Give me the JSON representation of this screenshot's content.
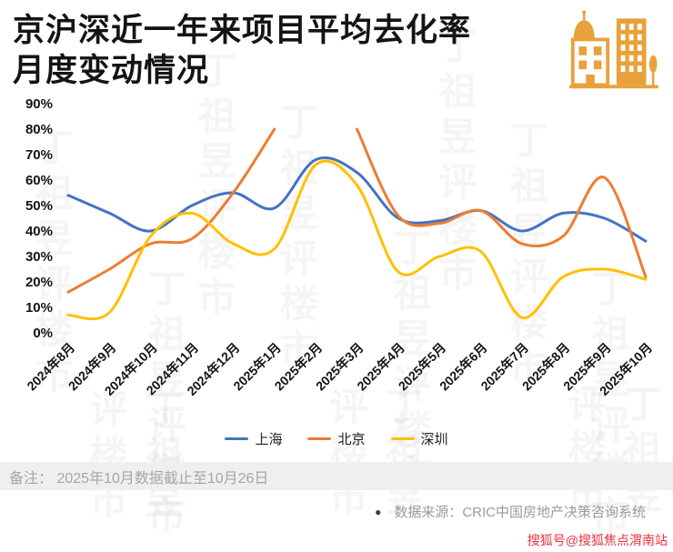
{
  "title": {
    "line1": "京沪深近一年来项目平均去化率",
    "line2": "月度变动情况"
  },
  "icon": {
    "name": "buildings-icon",
    "color": "#E8A23C"
  },
  "chart_data": {
    "type": "line",
    "title": "京沪深近一年来项目平均去化率月度变动情况",
    "categories": [
      "2024年8月",
      "2024年9月",
      "2024年10月",
      "2024年11月",
      "2024年12月",
      "2025年1月",
      "2025年2月",
      "2025年3月",
      "2025年4月",
      "2025年5月",
      "2025年6月",
      "2025年7月",
      "2025年8月",
      "2025年9月",
      "2025年10月"
    ],
    "series": [
      {
        "name": "上海",
        "color": "#4472C4",
        "values": [
          54,
          47,
          40,
          50,
          55,
          49,
          68,
          63,
          45,
          44,
          48,
          40,
          47,
          45,
          36
        ]
      },
      {
        "name": "北京",
        "color": "#ED7D31",
        "values": [
          16,
          25,
          35,
          37,
          55,
          80,
          null,
          80,
          46,
          43,
          48,
          35,
          38,
          61,
          22
        ]
      },
      {
        "name": "深圳",
        "color": "#FFC000",
        "values": [
          7,
          8,
          38,
          47,
          35,
          33,
          66,
          58,
          24,
          30,
          32,
          6,
          22,
          25,
          21
        ]
      }
    ],
    "ylim": [
      0,
      90
    ],
    "y_tick_step": 10,
    "y_tick_format": "percent",
    "grid": false,
    "legend_position": "bottom",
    "smooth": true
  },
  "footer": {
    "note": "备注： 2025年10月数据截止至10月26日",
    "source_bullet": "●",
    "source": "数据来源：CRIC中国房地产决策咨询系统",
    "credit": "搜狐号@搜狐焦点渭南站",
    "credit_color": "#E8333C"
  },
  "watermark": {
    "text": "丁祖昱评楼市"
  }
}
